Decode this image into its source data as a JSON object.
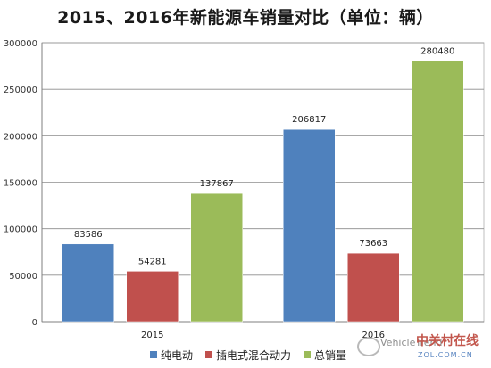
{
  "chart_data": {
    "type": "bar",
    "title": "2015、2016年新能源车销量对比（单位：辆）",
    "categories": [
      "2015",
      "2016"
    ],
    "series": [
      {
        "name": "纯电动",
        "color": "#4f81bd",
        "values": [
          83586,
          206817
        ]
      },
      {
        "name": "插电式混合动力",
        "color": "#c0504d",
        "values": [
          54281,
          73663
        ]
      },
      {
        "name": "总销量",
        "color": "#9bbb59",
        "values": [
          137867,
          280480
        ]
      }
    ],
    "ylim": [
      0,
      300000
    ],
    "yticks": [
      "0",
      "50000",
      "100000",
      "150000",
      "200000",
      "250000",
      "300000"
    ],
    "grid": true,
    "legend_position": "bottom"
  },
  "watermark": {
    "text": "VehicleTrend",
    "brand_cn": "中关村在线",
    "brand_url": "ZOL.COM.CN"
  }
}
